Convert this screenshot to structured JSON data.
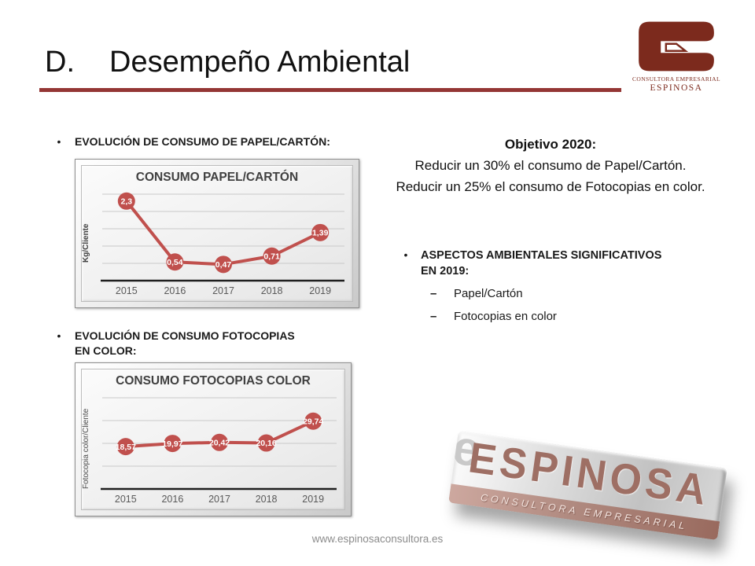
{
  "slide": {
    "title_prefix": "D.",
    "title": "Desempeño Ambiental",
    "footer": "www.espinosaconsultora.es",
    "accent_color": "#943634",
    "bullet_glyph": "•",
    "dash_glyph": "–"
  },
  "logo": {
    "line1": "CONSULTORA EMPRESARIAL",
    "line2": "ESPINOSA",
    "color": "#7c2a1d"
  },
  "left_column": {
    "bullet1": "EVOLUCIÓN DE CONSUMO DE PAPEL/CARTÓN:",
    "bullet2": "EVOLUCIÓN DE CONSUMO FOTOCOPIAS EN COLOR:"
  },
  "right_column": {
    "objective_title": "Objetivo 2020:",
    "objective_line1": "Reducir un 30% el consumo de Papel/Cartón.",
    "objective_line2": "Reducir un 25% el consumo de  Fotocopias en color.",
    "aspects_title": "ASPECTOS AMBIENTALES SIGNIFICATIVOS EN 2019:",
    "aspects": [
      "Papel/Cartón",
      "Fotocopias en color"
    ]
  },
  "plaque": {
    "name": "ESPINOSA",
    "subtitle": "CONSULTORA  EMPRESARIAL",
    "ghost_letter": "e"
  },
  "chart_data": [
    {
      "type": "line",
      "title": "CONSUMO PAPEL/CARTÓN",
      "ylabel": "Kg/Cliente",
      "categories": [
        "2015",
        "2016",
        "2017",
        "2018",
        "2019"
      ],
      "values": [
        2.3,
        0.54,
        0.47,
        0.71,
        1.39
      ],
      "labels": [
        "2,3",
        "0,54",
        "0,47",
        "0,71",
        "1,39"
      ],
      "ylim": [
        0,
        2.5
      ],
      "grid_step": 0.5,
      "grid": "on",
      "legend": "none",
      "line_color": "#C0504D"
    },
    {
      "type": "line",
      "title": "CONSUMO FOTOCOPIAS COLOR",
      "ylabel": "Fotocopia color/Cliente",
      "categories": [
        "2015",
        "2016",
        "2017",
        "2018",
        "2019"
      ],
      "values": [
        18.57,
        19.97,
        20.42,
        20.16,
        29.74
      ],
      "labels": [
        "18,57",
        "19,97",
        "20,42",
        "20,16",
        "29,74"
      ],
      "ylim": [
        0,
        40
      ],
      "grid_step": 10,
      "grid": "on",
      "legend": "none",
      "line_color": "#C0504D"
    }
  ]
}
